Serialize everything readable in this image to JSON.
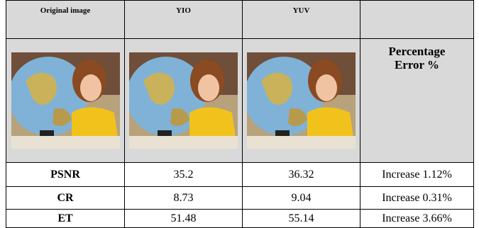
{
  "table": {
    "header": [
      "Original image",
      "YIO",
      "YUV",
      ""
    ],
    "image_row_label": "Percentage Error %",
    "rows": [
      [
        "PSNR",
        "35.2",
        "36.32",
        "Increase 1.12%"
      ],
      [
        "CR",
        "8.73",
        "9.04",
        "Increase 0.31%"
      ],
      [
        "ET",
        "51.48",
        "55.14",
        "Increase 3.66%"
      ]
    ]
  }
}
